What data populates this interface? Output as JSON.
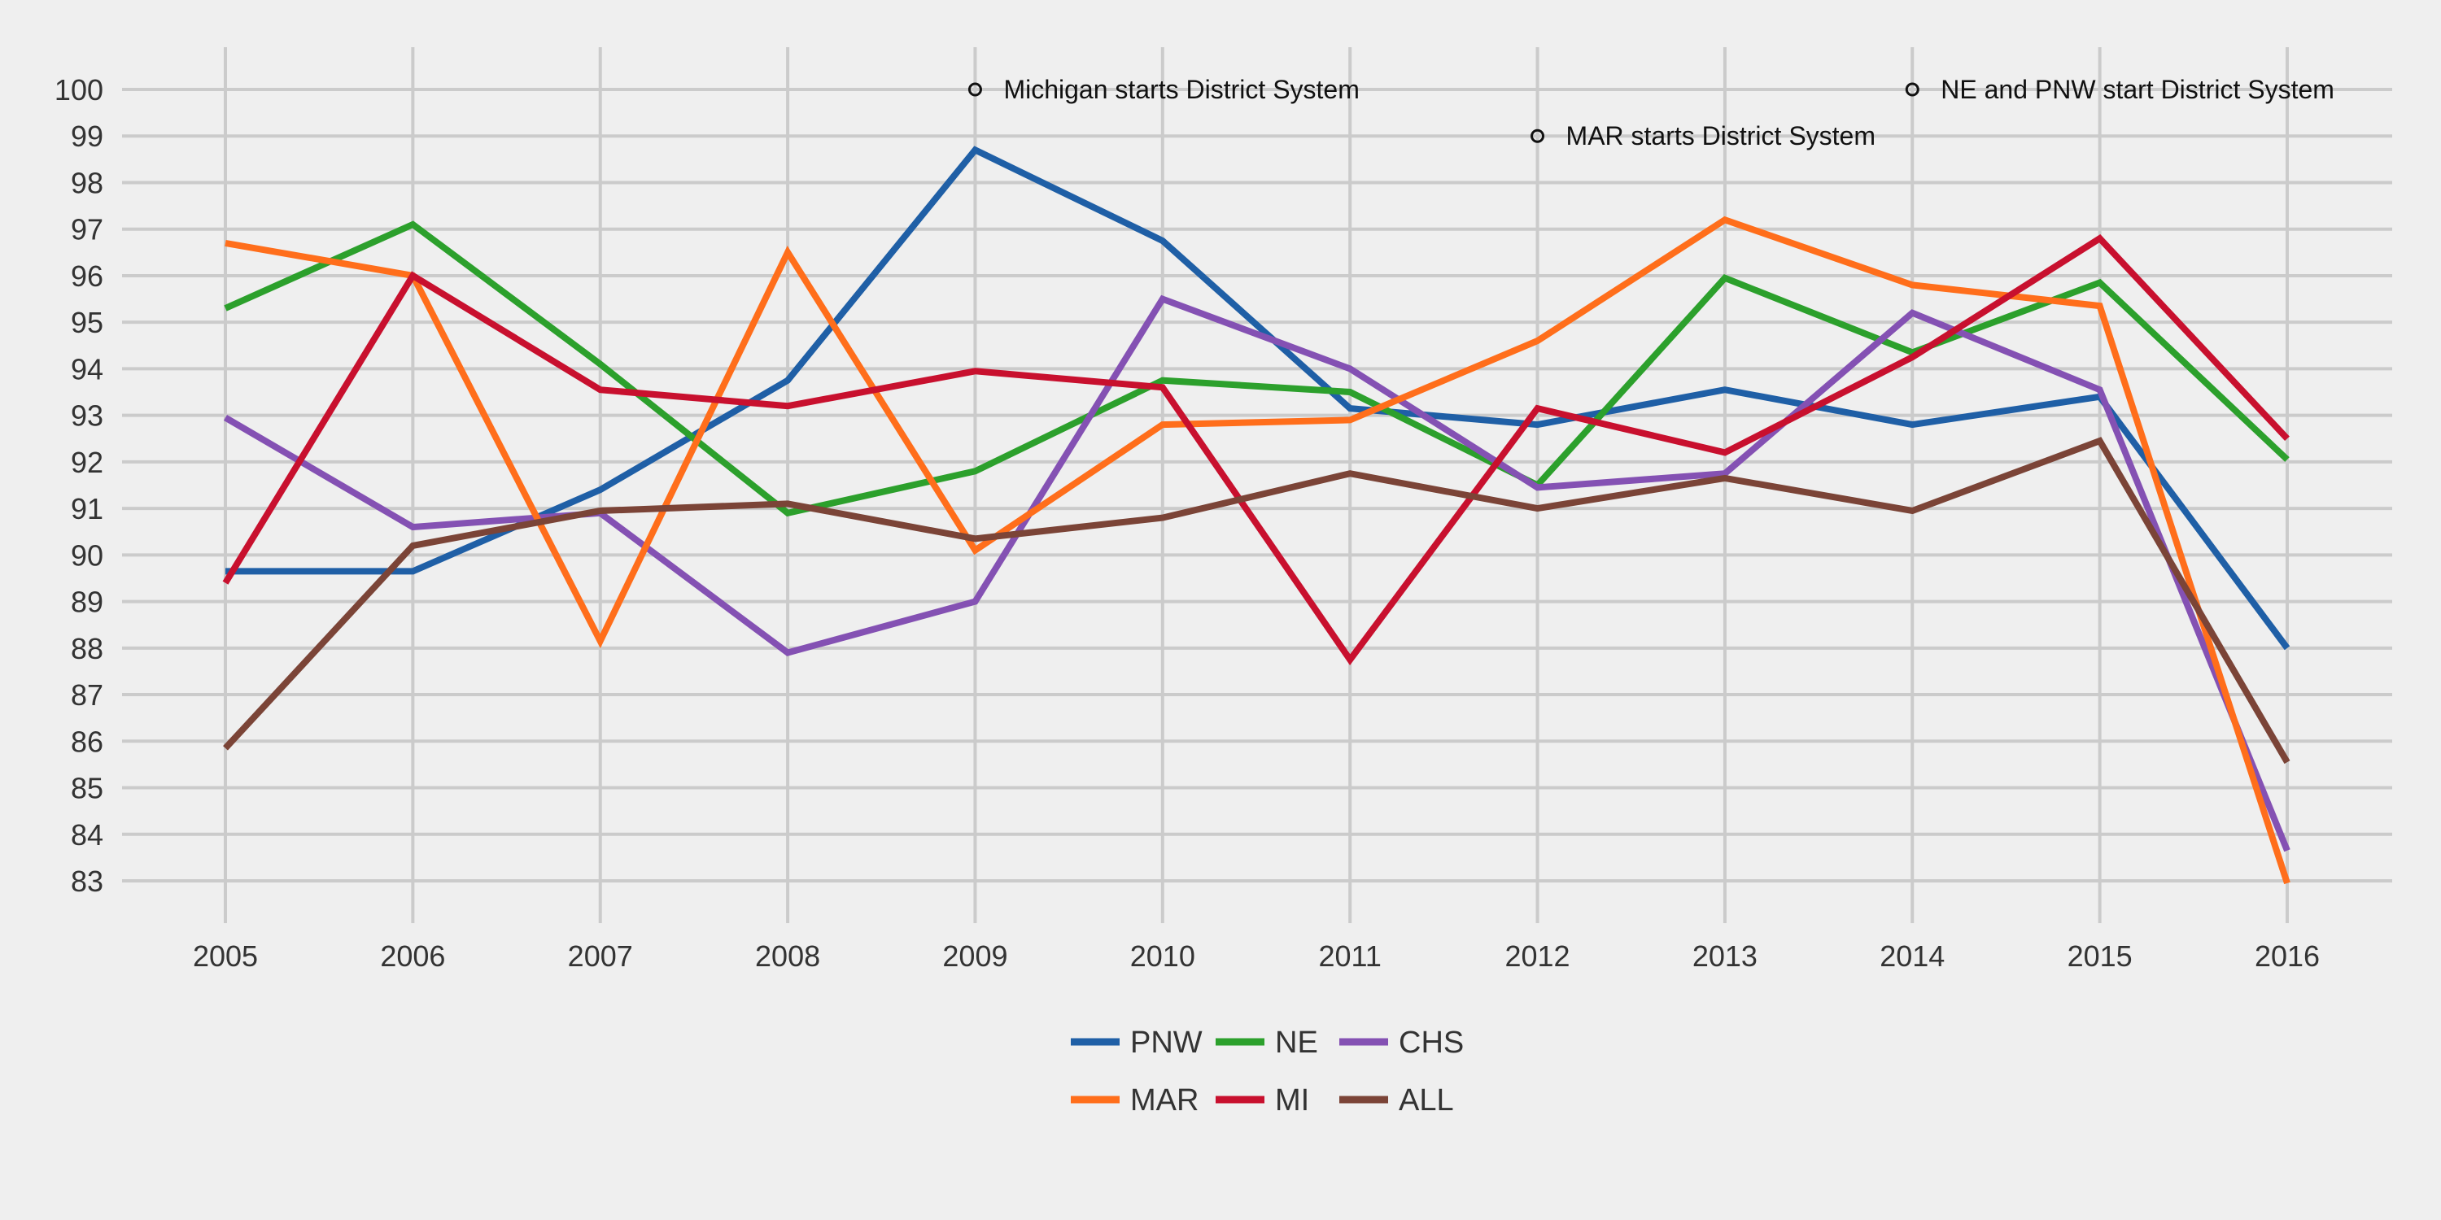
{
  "chart_data": {
    "type": "line",
    "title": "",
    "xlabel": "",
    "ylabel": "",
    "x": [
      "2005",
      "2006",
      "2007",
      "2008",
      "2009",
      "2010",
      "2011",
      "2012",
      "2013",
      "2014",
      "2015",
      "2016"
    ],
    "ylim": [
      83,
      100
    ],
    "yticks": [
      83,
      84,
      85,
      86,
      87,
      88,
      89,
      90,
      91,
      92,
      93,
      94,
      95,
      96,
      97,
      98,
      99,
      100
    ],
    "grid": true,
    "legend_position": "bottom-center",
    "series": [
      {
        "name": "PNW",
        "color": "#1f5fa6",
        "values": [
          89.65,
          89.65,
          91.4,
          93.75,
          98.7,
          96.75,
          93.15,
          92.8,
          93.55,
          92.8,
          93.4,
          88.0
        ]
      },
      {
        "name": "NE",
        "color": "#2ca02c",
        "values": [
          95.3,
          97.1,
          94.1,
          90.9,
          91.8,
          93.75,
          93.5,
          91.5,
          95.95,
          94.35,
          95.85,
          92.05
        ]
      },
      {
        "name": "CHS",
        "color": "#8451b3",
        "values": [
          92.95,
          90.6,
          90.9,
          87.9,
          89.0,
          95.5,
          94.0,
          91.45,
          91.75,
          95.2,
          93.55,
          83.65
        ]
      },
      {
        "name": "MAR",
        "color": "#ff6e1b",
        "values": [
          96.7,
          96.0,
          88.15,
          96.5,
          90.1,
          92.8,
          92.9,
          94.6,
          97.2,
          95.8,
          95.35,
          82.95
        ]
      },
      {
        "name": "MI",
        "color": "#c8102e",
        "values": [
          89.4,
          96.0,
          93.55,
          93.2,
          93.95,
          93.6,
          87.75,
          93.15,
          92.2,
          94.25,
          96.8,
          92.5
        ]
      },
      {
        "name": "ALL",
        "color": "#7b4437",
        "values": [
          85.85,
          90.2,
          90.95,
          91.1,
          90.35,
          90.8,
          91.75,
          91.0,
          91.65,
          90.95,
          92.45,
          85.55
        ]
      }
    ],
    "annotations": [
      {
        "text": "Michigan starts District System",
        "x": "2009",
        "y": 100
      },
      {
        "text": "MAR starts District System",
        "x": "2012",
        "y": 99
      },
      {
        "text": "NE and PNW start District System",
        "x": "2014",
        "y": 100
      }
    ]
  }
}
